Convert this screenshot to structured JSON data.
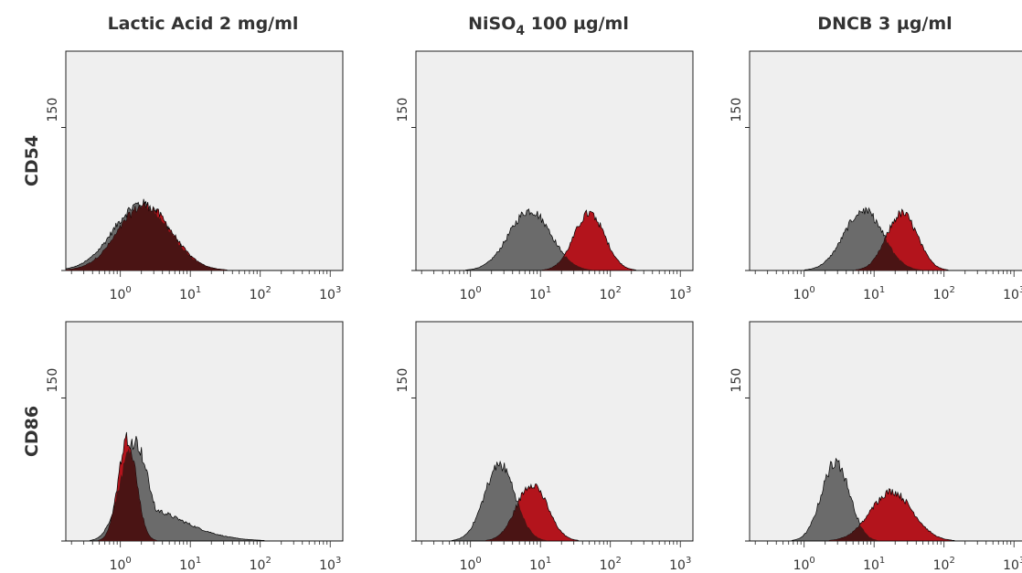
{
  "colors": {
    "panel_bg": "#efefef",
    "control_fill": "#6b6b6b",
    "treated_fill": "#b3141c",
    "overlap_fill": "#4a1414",
    "outline": "#000000"
  },
  "chart_data": {
    "type": "histogram-grid",
    "columns": [
      {
        "title": "Lactic Acid 2 mg/ml"
      },
      {
        "title_main": "NiSO",
        "title_sub": "4",
        "title_rest": " 100 µg/ml"
      },
      {
        "title": "DNCB 3 µg/ml"
      }
    ],
    "rows": [
      {
        "label": "CD54"
      },
      {
        "label": "CD86"
      }
    ],
    "x_scale": "log",
    "x_ticks": [
      {
        "base": "10",
        "exp": "0",
        "value": 1
      },
      {
        "base": "10",
        "exp": "1",
        "value": 10
      },
      {
        "base": "10",
        "exp": "2",
        "value": 100
      },
      {
        "base": "10",
        "exp": "3",
        "value": 1000
      }
    ],
    "y_tick_label": "150",
    "y_tick_value": 150,
    "ylim": [
      0,
      230
    ],
    "panels": [
      {
        "row": 0,
        "col": 0,
        "control": {
          "mode_log10": 0.3,
          "sigma": 0.4,
          "peak": 70
        },
        "treated": {
          "mode_log10": 0.35,
          "sigma": 0.38,
          "peak": 68
        }
      },
      {
        "row": 0,
        "col": 1,
        "control": {
          "mode_log10": 0.85,
          "sigma": 0.3,
          "peak": 63
        },
        "treated": {
          "mode_log10": 1.7,
          "sigma": 0.22,
          "peak": 60
        }
      },
      {
        "row": 0,
        "col": 2,
        "control": {
          "mode_log10": 0.85,
          "sigma": 0.28,
          "peak": 63
        },
        "treated": {
          "mode_log10": 1.4,
          "sigma": 0.22,
          "peak": 60
        }
      },
      {
        "row": 1,
        "col": 0,
        "control": {
          "mode_log10": 0.2,
          "sigma": 0.2,
          "peak": 105,
          "tail": 0.45
        },
        "treated": {
          "mode_log10": 0.1,
          "sigma": 0.13,
          "peak": 108
        }
      },
      {
        "row": 1,
        "col": 1,
        "control": {
          "mode_log10": 0.42,
          "sigma": 0.22,
          "peak": 80
        },
        "treated": {
          "mode_log10": 0.88,
          "sigma": 0.22,
          "peak": 60
        }
      },
      {
        "row": 1,
        "col": 2,
        "control": {
          "mode_log10": 0.45,
          "sigma": 0.2,
          "peak": 83
        },
        "treated": {
          "mode_log10": 1.25,
          "sigma": 0.3,
          "peak": 52
        }
      }
    ]
  }
}
